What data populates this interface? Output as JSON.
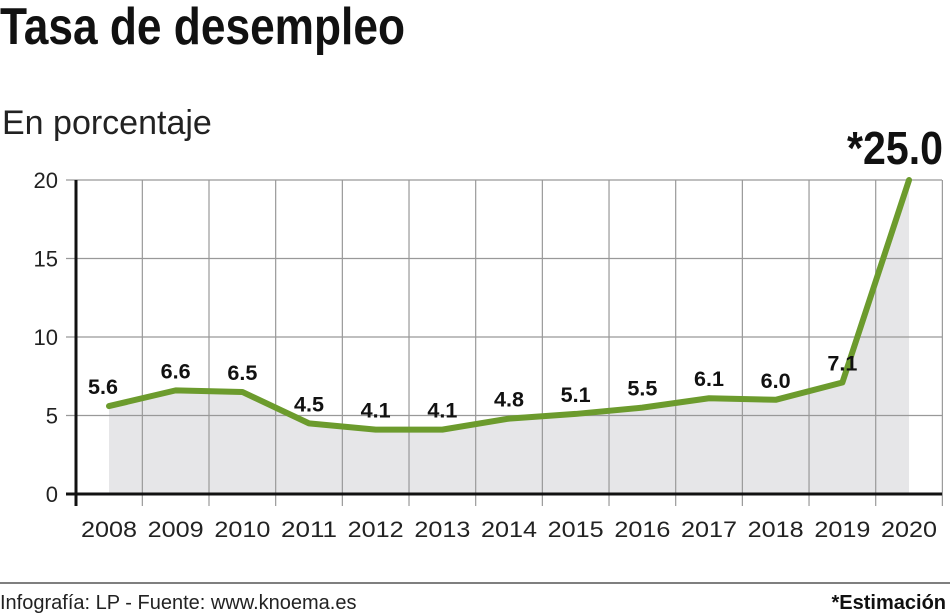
{
  "chart_data": {
    "type": "area",
    "title": "Tasa de desempleo",
    "subtitle": "En porcentaje",
    "categories": [
      "2008",
      "2009",
      "2010",
      "2011",
      "2012",
      "2013",
      "2014",
      "2015",
      "2016",
      "2017",
      "2018",
      "2019",
      "2020"
    ],
    "values": [
      5.6,
      6.6,
      6.5,
      4.5,
      4.1,
      4.1,
      4.8,
      5.1,
      5.5,
      6.1,
      6.0,
      7.1,
      25.0
    ],
    "data_labels": [
      "5.6",
      "6.6",
      "6.5",
      "4.5",
      "4.1",
      "4.1",
      "4.8",
      "5.1",
      "5.5",
      "6.1",
      "6.0",
      "7.1",
      "*25.0"
    ],
    "ylim": [
      0,
      20
    ],
    "yticks": [
      "0",
      "5",
      "10",
      "15",
      "20"
    ],
    "grid": true,
    "line_color": "#6c9b2d",
    "fill_color": "#e6e6e8",
    "xlabel": "",
    "ylabel": ""
  },
  "footer": {
    "source": "Infografía: LP - Fuente: www.knoema.es",
    "note": "*Estimación"
  }
}
